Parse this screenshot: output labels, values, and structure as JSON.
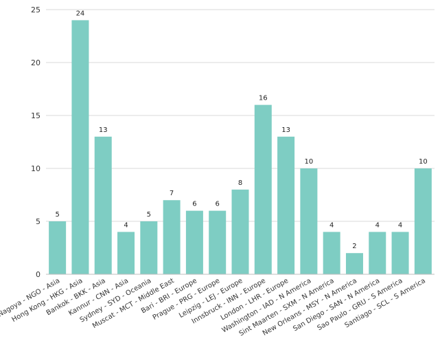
{
  "chart_data": {
    "type": "bar",
    "categories": [
      "Nagoya - NGO - Asia",
      "Hong Kong - HKG - Asia",
      "Bankok - BKK - Asia",
      "Kannur - CNN - Asia",
      "Sydney - SYD - Oceania",
      "Muscat - MCT - Middle East",
      "Bari - BRI - Europe",
      "Prague - PRG - Europe",
      "Leipzig - LEJ - Europe",
      "Innsbruck - INN - Europe",
      "London - LHR - Europe",
      "Washington - IAD - N America",
      "Sint Maarten - SXM - N America",
      "New Orleans - MSY - N America",
      "San Diego - SAN - N America",
      "Sao Paulo - GRU - S America",
      "Santiago - SCL - S America"
    ],
    "values": [
      5,
      24,
      13,
      4,
      5,
      7,
      6,
      6,
      8,
      16,
      13,
      10,
      4,
      2,
      4,
      4,
      10
    ],
    "data_labels": [
      "5",
      "24",
      "13",
      "4",
      "5",
      "7",
      "6",
      "6",
      "8",
      "16",
      "13",
      "10",
      "4",
      "2",
      "4",
      "4",
      "10"
    ],
    "yticks": [
      "0",
      "5",
      "10",
      "15",
      "20",
      "25"
    ],
    "ylim": [
      0,
      25
    ],
    "grid": true,
    "legend": "none",
    "colors": {
      "bar": "#7ecdc3",
      "grid": "#d9d9d9"
    }
  }
}
